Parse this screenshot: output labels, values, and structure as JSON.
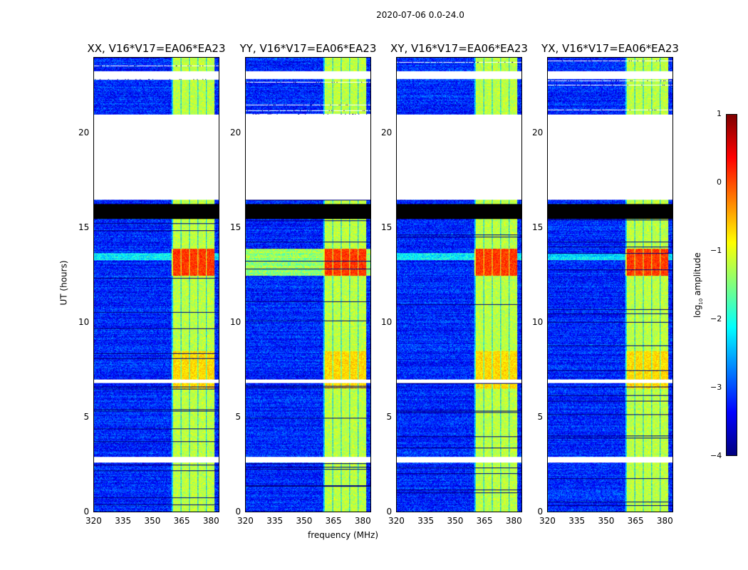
{
  "chart_data": {
    "type": "heatmap",
    "title": "2020-07-06 0.0-24.0",
    "xlabel": "frequency (MHz)",
    "ylabel": "UT (hours)",
    "xlim": [
      320,
      384.4
    ],
    "ylim": [
      0,
      24
    ],
    "xticks": [
      320,
      335,
      350,
      365,
      380
    ],
    "yticks": [
      0,
      5,
      10,
      15,
      20
    ],
    "panels": [
      {
        "title": "XX, V16*V17=EA06*EA23"
      },
      {
        "title": "YY, V16*V17=EA06*EA23"
      },
      {
        "title": "XY, V16*V17=EA06*EA23"
      },
      {
        "title": "YX, V16*V17=EA06*EA23"
      }
    ],
    "colorbar": {
      "label": "log10 amplitude",
      "label_main": "log",
      "label_sub": "10",
      "label_rest": " amplitude",
      "range": [
        -4,
        1
      ],
      "ticks": [
        1,
        0,
        -1,
        -2,
        -3,
        -4
      ],
      "colormap": "jet"
    },
    "features": {
      "background_log_amplitude": -3.2,
      "bright_band_mhz": [
        360,
        382
      ],
      "bright_band_log_amplitude": -1.2,
      "strong_rfi_hours": [
        12.5,
        13.9
      ],
      "no_data_hours": [
        [
          17.6,
          21.0
        ],
        [
          16.5,
          17.6
        ],
        [
          22.9,
          23.3
        ],
        [
          6.8,
          7.0
        ],
        [
          2.6,
          2.9
        ]
      ],
      "zero_hours": [
        [
          15.5,
          16.3
        ]
      ]
    }
  }
}
